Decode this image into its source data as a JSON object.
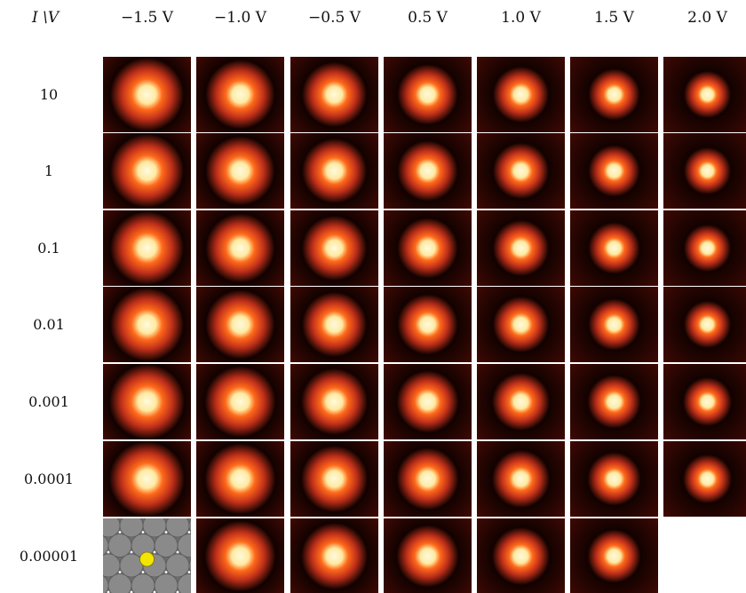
{
  "corner_label": "I \\V",
  "columns": [
    "−1.5 V",
    "−1.0 V",
    "−0.5 V",
    "0.5 V",
    "1.0 V",
    "1.5 V",
    "2.0 V"
  ],
  "rows": [
    "10",
    "1",
    "0.1",
    "0.01",
    "0.001",
    "0.0001",
    "0.00001"
  ],
  "missing_cells": [
    [
      6,
      6
    ]
  ],
  "schematic_cell": [
    6,
    0
  ],
  "colors": {
    "hot_core": "#fffbe0",
    "hot_mid": "#ff6a1a",
    "hot_outer": "#c0301a",
    "ring_dark": "#120200",
    "background": "#5a1208",
    "schematic_gray": "#8a8a8a",
    "schematic_atom": "#f2e600"
  }
}
